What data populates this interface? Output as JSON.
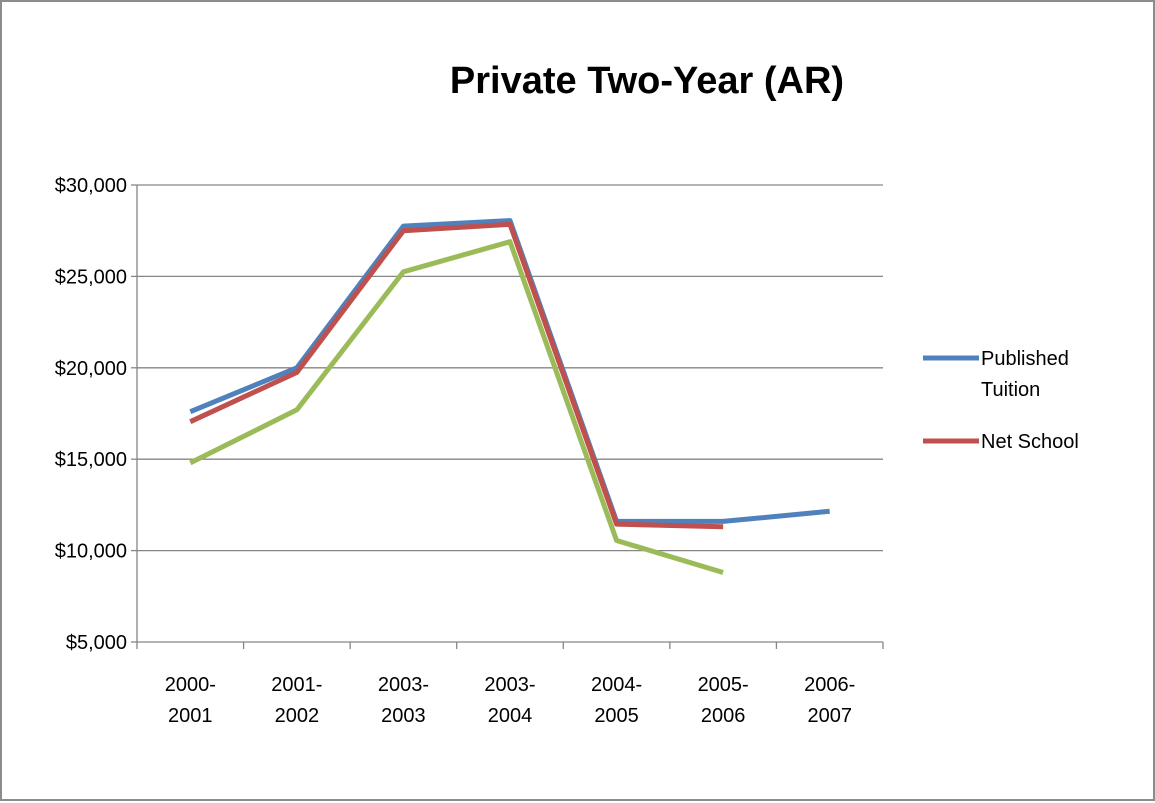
{
  "chart_data": {
    "type": "line",
    "title": "Private Two-Year (AR)",
    "xlabel": "",
    "ylabel": "",
    "categories": [
      [
        "2000-",
        "2001"
      ],
      [
        "2001-",
        "2002"
      ],
      [
        "2003-",
        "2003"
      ],
      [
        "2003-",
        "2004"
      ],
      [
        "2004-",
        "2005"
      ],
      [
        "2005-",
        "2006"
      ],
      [
        "2006-",
        "2007"
      ]
    ],
    "ylim": [
      5000,
      30000
    ],
    "yticks": [
      5000,
      10000,
      15000,
      20000,
      25000,
      30000
    ],
    "ytick_labels": [
      "$5,000",
      "$10,000",
      "$15,000",
      "$20,000",
      "$25,000",
      "$30,000"
    ],
    "grid": "horizontal",
    "legend_position": "right",
    "series": [
      {
        "name": "Published Tuition",
        "color": "#4f81bd",
        "values": [
          17600,
          20000,
          27750,
          28050,
          11600,
          11600,
          12150
        ]
      },
      {
        "name": "Net School",
        "color": "#c0504d",
        "values": [
          17050,
          19750,
          27500,
          27850,
          11450,
          11300,
          null
        ]
      },
      {
        "color": "#9bbb59",
        "values": [
          14800,
          17700,
          25250,
          26900,
          10550,
          8800,
          null
        ]
      }
    ],
    "legend": [
      {
        "lines": [
          "Published",
          "Tuition"
        ],
        "color": "#4f81bd"
      },
      {
        "lines": [
          "Net School"
        ],
        "color": "#c0504d"
      }
    ]
  }
}
